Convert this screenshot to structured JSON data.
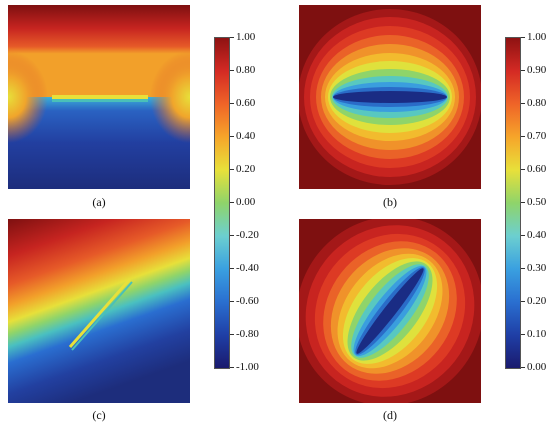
{
  "figure": {
    "panels": [
      {
        "id": "a",
        "caption": "(a)"
      },
      {
        "id": "b",
        "caption": "(b)"
      },
      {
        "id": "c",
        "caption": "(c)"
      },
      {
        "id": "d",
        "caption": "(d)"
      }
    ],
    "colorbar_left": {
      "ticks": [
        "1.00",
        "0.80",
        "0.60",
        "0.40",
        "0.20",
        "0.00",
        "-0.20",
        "-0.40",
        "-0.60",
        "-0.80",
        "-1.00"
      ]
    },
    "colorbar_right": {
      "ticks": [
        "1.00",
        "0.90",
        "0.80",
        "0.70",
        "0.60",
        "0.50",
        "0.40",
        "0.30",
        "0.20",
        "0.10",
        "0.00"
      ]
    },
    "colormap": [
      "#1a1a6e",
      "#1f3fa6",
      "#2a6fd0",
      "#3aa0e0",
      "#6ccfd0",
      "#8fd46a",
      "#e8e03a",
      "#f6a52a",
      "#ef6428",
      "#d42a24",
      "#8e1212"
    ]
  }
}
